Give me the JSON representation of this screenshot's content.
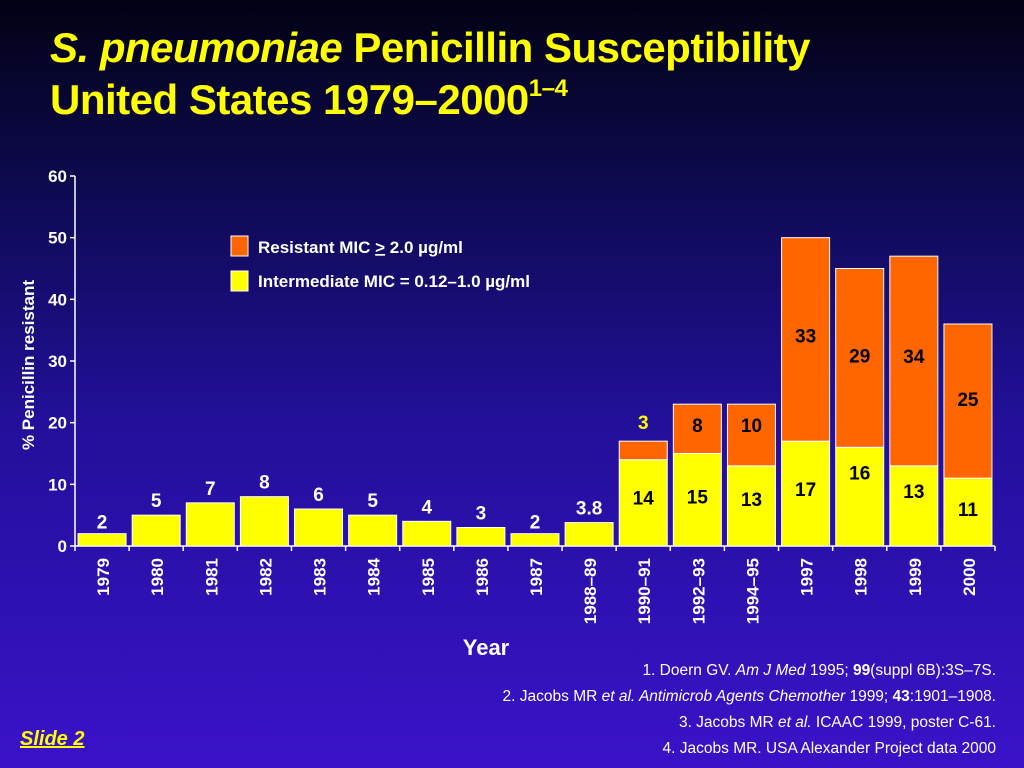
{
  "title": {
    "italic_part": "S. pneumoniae",
    "line1_rest": " Penicillin Susceptibility",
    "line2": "United States 1979–2000",
    "superscript": "1–4"
  },
  "legend": {
    "resistant_label_pre": "Resistant MIC ",
    "resistant_label_sym": ">",
    "resistant_label_post": " 2.0 µg/ml",
    "intermediate_label": "Intermediate MIC = 0.12–1.0 µg/ml"
  },
  "colors": {
    "resistant": "#ff6600",
    "intermediate": "#ffff00",
    "bar_edge": "#ffffff",
    "axis": "#ffffff",
    "label_dark": "#000000",
    "label_light": "#ffffff"
  },
  "chart_data": {
    "type": "bar",
    "stacked": true,
    "xlabel": "Year",
    "ylabel": "% Penicillin resistant",
    "ylim": [
      0,
      60
    ],
    "yticks": [
      0,
      10,
      20,
      30,
      40,
      50,
      60
    ],
    "categories": [
      "1979",
      "1980",
      "1981",
      "1982",
      "1983",
      "1984",
      "1985",
      "1986",
      "1987",
      "1988–89",
      "1990–91",
      "1992–93",
      "1994–95",
      "1997",
      "1998",
      "1999",
      "2000"
    ],
    "series": [
      {
        "name": "Intermediate MIC = 0.12–1.0 µg/ml",
        "values": [
          2,
          5,
          7,
          8,
          6,
          5,
          4,
          3,
          2,
          3.8,
          14,
          15,
          13,
          17,
          16,
          13,
          11
        ]
      },
      {
        "name": "Resistant MIC ≥ 2.0 µg/ml",
        "values": [
          0,
          0,
          0,
          0,
          0,
          0,
          0,
          0,
          0,
          0,
          3,
          8,
          10,
          33,
          29,
          34,
          25
        ]
      }
    ],
    "data_labels": {
      "intermediate": [
        "2",
        "5",
        "7",
        "8",
        "6",
        "5",
        "4",
        "3",
        "2",
        "3.8",
        "14",
        "15",
        "13",
        "17",
        "16",
        "13",
        "11"
      ],
      "resistant": [
        "",
        "",
        "",
        "",
        "",
        "",
        "",
        "",
        "",
        "",
        "3",
        "8",
        "10",
        "33",
        "29",
        "34",
        "25"
      ]
    }
  },
  "references": [
    {
      "pre": "1. Doern GV. ",
      "italic": "Am J Med",
      "mid": " 1995; ",
      "bold": "99",
      "post": "(suppl 6B):3S–7S."
    },
    {
      "pre": "2. Jacobs MR ",
      "italic": "et al. Antimicrob Agents Chemother",
      "mid": " 1999; ",
      "bold": "43",
      "post": ":1901–1908."
    },
    {
      "pre": "3. Jacobs MR ",
      "italic": "et al.",
      "mid": " ICAAC 1999, poster C-61.",
      "bold": "",
      "post": ""
    },
    {
      "pre": "4. Jacobs MR. USA Alexander Project data 2000",
      "italic": "",
      "mid": "",
      "bold": "",
      "post": ""
    }
  ],
  "slide_label": "Slide  2"
}
